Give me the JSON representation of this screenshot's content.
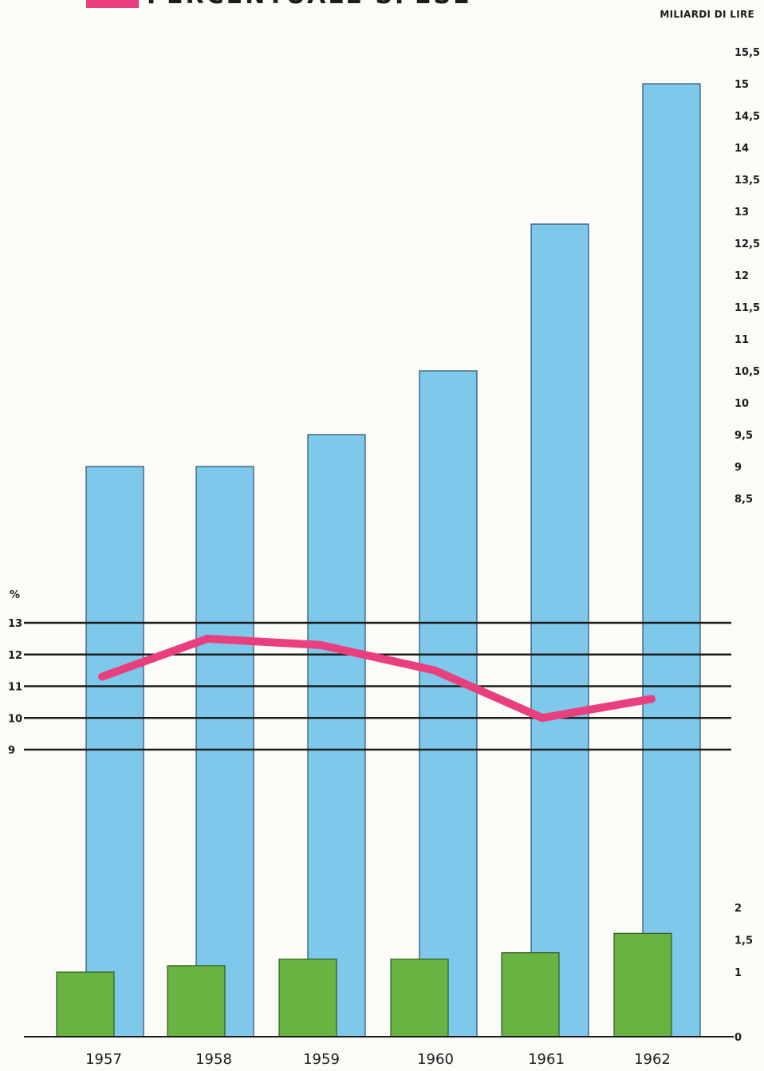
{
  "chart_data": {
    "type": "bar",
    "title": "PERCENTUALE SPESE",
    "legend_placement": "top-left",
    "categories": [
      "1957",
      "1958",
      "1959",
      "1960",
      "1961",
      "1962"
    ],
    "unit_label": "MILIARDI DI LIRE",
    "series": [
      {
        "kind": "bar",
        "color": "#7ec8ec",
        "values": [
          9.0,
          9.0,
          9.5,
          10.5,
          12.8,
          15.0
        ]
      },
      {
        "kind": "bar",
        "color": "#69b343",
        "values": [
          1.0,
          1.1,
          1.2,
          1.2,
          1.3,
          1.6
        ]
      },
      {
        "name": "PERCENTUALE SPESE",
        "kind": "line",
        "axis": "percent",
        "color": "#ea3f7f",
        "values": [
          11.3,
          12.5,
          12.3,
          11.5,
          10.0,
          10.6
        ]
      }
    ],
    "right_axis_ticks": [
      "15,5",
      "15",
      "14,5",
      "14",
      "13,5",
      "13",
      "12,5",
      "12",
      "11,5",
      "11",
      "10,5",
      "10",
      "9,5",
      "9",
      "8,5"
    ],
    "right_axis_lower_ticks": [
      "2",
      "1,5",
      "1",
      "0"
    ],
    "left_axis_label": "%",
    "left_axis_ticks": [
      "13",
      "12",
      "11",
      "10",
      "9"
    ],
    "percent_range": [
      9,
      13
    ],
    "grid": "horizontal lines on percent scale"
  }
}
